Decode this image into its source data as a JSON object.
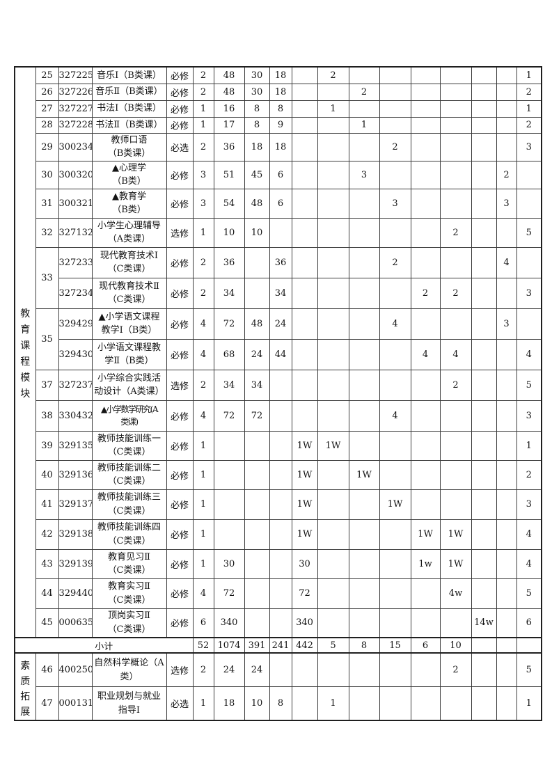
{
  "table": {
    "subtotal": {
      "label": "小计",
      "credits": "52",
      "total": "1074",
      "theory": "391",
      "practice": "241",
      "tail": [
        "442",
        "5",
        "8",
        "15",
        "6",
        "10",
        "",
        "",
        ""
      ]
    },
    "groups": [
      {
        "module_label": "教育课程模块",
        "rows": [
          {
            "no": "25",
            "code": "327225",
            "name": "音乐Ⅰ（B类课）",
            "type": "必修",
            "credits": "2",
            "total": "48",
            "theory": "30",
            "practice": "18",
            "tail": [
              "",
              "2",
              "",
              "",
              "",
              "",
              "",
              "",
              "1"
            ]
          },
          {
            "no": "26",
            "code": "327226",
            "name": "音乐Ⅱ（B类课）",
            "type": "必修",
            "credits": "2",
            "total": "48",
            "theory": "30",
            "practice": "18",
            "tail": [
              "",
              "",
              "2",
              "",
              "",
              "",
              "",
              "",
              "2"
            ]
          },
          {
            "no": "27",
            "code": "327227",
            "name": "书法Ⅰ（B类课）",
            "type": "必修",
            "credits": "1",
            "total": "16",
            "theory": "8",
            "practice": "8",
            "tail": [
              "",
              "1",
              "",
              "",
              "",
              "",
              "",
              "",
              "1"
            ]
          },
          {
            "no": "28",
            "code": "327228",
            "name": "书法Ⅱ（B类课）",
            "type": "必修",
            "credits": "1",
            "total": "17",
            "theory": "8",
            "practice": "9",
            "tail": [
              "",
              "",
              "1",
              "",
              "",
              "",
              "",
              "",
              "2"
            ]
          },
          {
            "no": "29",
            "code": "300234",
            "name": "教师口语\n（B类课）",
            "type": "必选",
            "credits": "2",
            "total": "36",
            "theory": "18",
            "practice": "18",
            "tail": [
              "",
              "",
              "",
              "2",
              "",
              "",
              "",
              "",
              "3"
            ]
          },
          {
            "no": "30",
            "code": "300320",
            "name": "▲心理学\n（B类）",
            "type": "必修",
            "credits": "3",
            "total": "51",
            "theory": "45",
            "practice": "6",
            "tail": [
              "",
              "",
              "3",
              "",
              "",
              "",
              "",
              "2",
              ""
            ]
          },
          {
            "no": "31",
            "code": "300321",
            "name": "▲教育学\n（B类）",
            "type": "必修",
            "credits": "3",
            "total": "54",
            "theory": "48",
            "practice": "6",
            "tail": [
              "",
              "",
              "",
              "3",
              "",
              "",
              "",
              "3",
              ""
            ]
          },
          {
            "no": "32",
            "code": "327132",
            "name": "小学生心理辅导\n（A类课）",
            "type": "选修",
            "credits": "1",
            "total": "10",
            "theory": "10",
            "practice": "",
            "tail": [
              "",
              "",
              "",
              "",
              "",
              "2",
              "",
              "",
              "5"
            ]
          },
          {
            "no": "33",
            "no_span": 2,
            "code": "327233",
            "name": "现代教育技术Ⅰ\n（C类课）",
            "type": "必修",
            "credits": "2",
            "total": "36",
            "theory": "",
            "practice": "36",
            "tail": [
              "",
              "",
              "",
              "2",
              "",
              "",
              "",
              "4",
              ""
            ]
          },
          {
            "no": null,
            "code": "327234",
            "name": "现代教育技术Ⅱ\n（C类课）",
            "type": "必修",
            "credits": "2",
            "total": "34",
            "theory": "",
            "practice": "34",
            "tail": [
              "",
              "",
              "",
              "",
              "2",
              "2",
              "",
              "",
              "3"
            ]
          },
          {
            "no": "35",
            "no_span": 2,
            "code": "329429",
            "name": "▲小学语文课程\n教学Ⅰ（B类）",
            "type": "必修",
            "credits": "4",
            "total": "72",
            "theory": "48",
            "practice": "24",
            "tail": [
              "",
              "",
              "",
              "4",
              "",
              "",
              "",
              "3",
              ""
            ]
          },
          {
            "no": null,
            "code": "329430",
            "name": "小学语文课程教\n学Ⅱ（B类）",
            "type": "必修",
            "credits": "4",
            "total": "68",
            "theory": "24",
            "practice": "44",
            "tail": [
              "",
              "",
              "",
              "",
              "4",
              "4",
              "",
              "",
              "4"
            ]
          },
          {
            "no": "37",
            "code": "327237",
            "name": "小学综合实践活\n动设计（A类课）",
            "type": "选修",
            "credits": "2",
            "total": "34",
            "theory": "34",
            "practice": "",
            "tail": [
              "",
              "",
              "",
              "",
              "",
              "2",
              "",
              "",
              "5"
            ]
          },
          {
            "no": "38",
            "code": "330432",
            "name": "▲小学数学研究(A\n类课)",
            "type": "必修",
            "credits": "4",
            "total": "72",
            "theory": "72",
            "practice": "",
            "tail": [
              "",
              "",
              "",
              "4",
              "",
              "",
              "",
              "",
              "3"
            ]
          },
          {
            "no": "39",
            "code": "329135",
            "name": "教师技能训练一\n（C类课）",
            "type": "必修",
            "credits": "1",
            "total": "",
            "theory": "",
            "practice": "",
            "tail": [
              "1W",
              "1W",
              "",
              "",
              "",
              "",
              "",
              "",
              "1"
            ]
          },
          {
            "no": "40",
            "code": "329136",
            "name": "教师技能训练二\n（C类课）",
            "type": "必修",
            "credits": "1",
            "total": "",
            "theory": "",
            "practice": "",
            "tail": [
              "1W",
              "",
              "1W",
              "",
              "",
              "",
              "",
              "",
              "2"
            ]
          },
          {
            "no": "41",
            "code": "329137",
            "name": "教师技能训练三\n（C类课）",
            "type": "必修",
            "credits": "1",
            "total": "",
            "theory": "",
            "practice": "",
            "tail": [
              "1W",
              "",
              "",
              "1W",
              "",
              "",
              "",
              "",
              "3"
            ]
          },
          {
            "no": "42",
            "code": "329138",
            "name": "教师技能训练四\n（C类课）",
            "type": "必修",
            "credits": "1",
            "total": "",
            "theory": "",
            "practice": "",
            "tail": [
              "1W",
              "",
              "",
              "",
              "1W",
              "1W",
              "",
              "",
              "4"
            ]
          },
          {
            "no": "43",
            "code": "329139",
            "name": "教育见习Ⅱ\n（C类课）",
            "type": "必修",
            "credits": "1",
            "total": "30",
            "theory": "",
            "practice": "",
            "tail": [
              "30",
              "",
              "",
              "",
              "1w",
              "1W",
              "",
              "",
              "4"
            ]
          },
          {
            "no": "44",
            "code": "329440",
            "name": "教育实习Ⅱ\n（C类课）",
            "type": "必修",
            "credits": "4",
            "total": "72",
            "theory": "",
            "practice": "",
            "tail": [
              "72",
              "",
              "",
              "",
              "",
              "4w",
              "",
              "",
              "5"
            ]
          },
          {
            "no": "45",
            "code": "000635",
            "name": "顶岗实习Ⅱ\n（C类课）",
            "type": "必修",
            "credits": "6",
            "total": "340",
            "theory": "",
            "practice": "",
            "tail": [
              "340",
              "",
              "",
              "",
              "",
              "",
              "14w",
              "",
              "6"
            ]
          }
        ]
      },
      {
        "module_label": "素质拓展",
        "rows": [
          {
            "no": "46",
            "code": "400250",
            "name": "自然科学概论（A\n类）",
            "type": "选修",
            "credits": "2",
            "total": "24",
            "theory": "24",
            "practice": "",
            "tail": [
              "",
              "",
              "",
              "",
              "",
              "2",
              "",
              "",
              "5"
            ]
          },
          {
            "no": "47",
            "code": "000131",
            "name": "职业规划与就业\n指导Ⅰ",
            "type": "必选",
            "credits": "1",
            "total": "18",
            "theory": "10",
            "practice": "8",
            "tail": [
              "",
              "1",
              "",
              "",
              "",
              "",
              "",
              "",
              "1"
            ]
          }
        ]
      }
    ]
  }
}
